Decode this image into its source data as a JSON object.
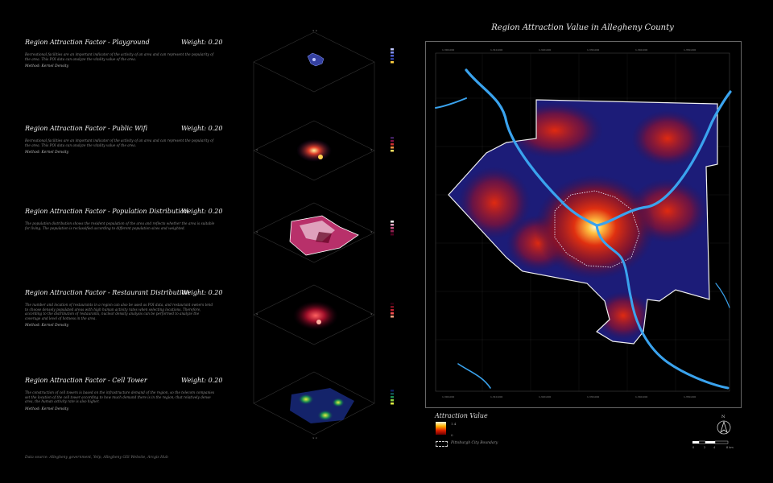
{
  "factors": [
    {
      "title": "Region Attraction Factor - Playground",
      "weight": "Weight: 0.20",
      "description": "Recreational facilities are an important indicator of the activity of an area and can represent the popularity of the area. This POI data can analyze the vitality value of the area.",
      "method": "Method: Kernel Density"
    },
    {
      "title": "Region Attraction Factor - Public Wifi",
      "weight": "Weight: 0.20",
      "description": "Recreational facilities are an important indicator of the activity of an area and can represent the popularity of the area. This POI data can analyze the vitality value of the area.",
      "method": "Method: Kernel Density"
    },
    {
      "title": "Region Attraction Factor - Population Distribution",
      "weight": "Weight: 0.20",
      "description": "The population distribution shows the resident population of the area and reflects whether the area is suitable for living. The population is reclassified according to different population sizes and weighted.",
      "method": ""
    },
    {
      "title": "Region Attraction Factor - Restaurant Distribution",
      "weight": "Weight: 0.20",
      "description": "The number and location of restaurants in a region can also be used as POI data, and restaurant owners tend to choose densely populated areas with high human activity rates when selecting locations. Therefore, according to the distribution of restaurants, nuclear density analysis can be performed to analyze the coverage and level of hotness in the area.",
      "method": "Method: Kernel Density"
    },
    {
      "title": "Region Attraction Factor - Cell Tower",
      "weight": "Weight: 0.20",
      "description": "The construction of cell towers is based on the infrastructure demand of the region, so the telecom companies set the location of the cell tower according to how much demand there is in the region; that relatively dense area, the human activity rate is also higher.",
      "method": "Method: Kernel Density"
    }
  ],
  "source": "Data source: Allegheny government, Yelp, Allegheny GIS Website, Arcgis Hub",
  "map": {
    "title": "Region Attraction Value in Allegheny County",
    "legend_title": "Attraction Value",
    "legend_max": "1.4",
    "legend_min": "0",
    "legend_city": "Pittsburgh City Boundary",
    "north": "N",
    "scale_labels": [
      "0",
      "2",
      "4",
      "8 km"
    ]
  },
  "colors": {
    "river": "#3aa3ee",
    "boundary": "#f0f0f0",
    "hot": "#ffd060",
    "high": "#d82000",
    "low": "#1a1a70"
  }
}
